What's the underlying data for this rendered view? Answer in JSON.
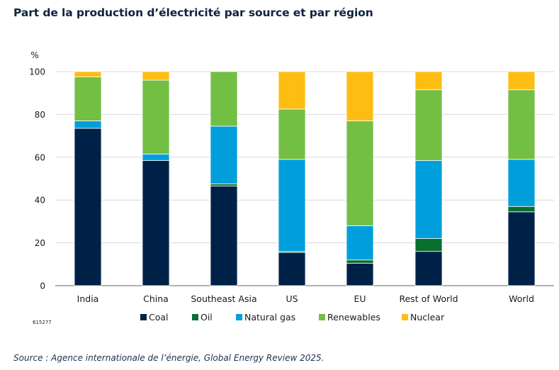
{
  "title": "Part de la production d’électricité par source et par région",
  "figure_code": "615277",
  "source_text": "Source : Agence internationale de l’énergie, Global Energy Review 2025.",
  "chart_data": {
    "type": "bar",
    "stacked": true,
    "ylabel": "%",
    "ylim": [
      0,
      100
    ],
    "yticks": [
      0,
      20,
      40,
      60,
      80,
      100
    ],
    "categories": [
      "India",
      "China",
      "Southeast Asia",
      "US",
      "EU",
      "Rest of World",
      "World"
    ],
    "series": [
      {
        "name": "Coal",
        "color": "#002147",
        "values": [
          73.5,
          58.5,
          46.5,
          15.5,
          10.5,
          16,
          34.5
        ]
      },
      {
        "name": "Oil",
        "color": "#0a6e2e",
        "values": [
          0,
          0,
          1,
          0.5,
          1.5,
          6,
          2.5
        ]
      },
      {
        "name": "Natural gas",
        "color": "#009fdc",
        "values": [
          3.5,
          3,
          27,
          43,
          16,
          36.5,
          22
        ]
      },
      {
        "name": "Renewables",
        "color": "#72bf44",
        "values": [
          20.5,
          34.5,
          25.5,
          23.5,
          49,
          33,
          32.5
        ]
      },
      {
        "name": "Nuclear",
        "color": "#fdbd13",
        "values": [
          2.5,
          4,
          0,
          17.5,
          23,
          8.5,
          8.5
        ]
      }
    ],
    "legend_position": "bottom",
    "grid": true
  }
}
